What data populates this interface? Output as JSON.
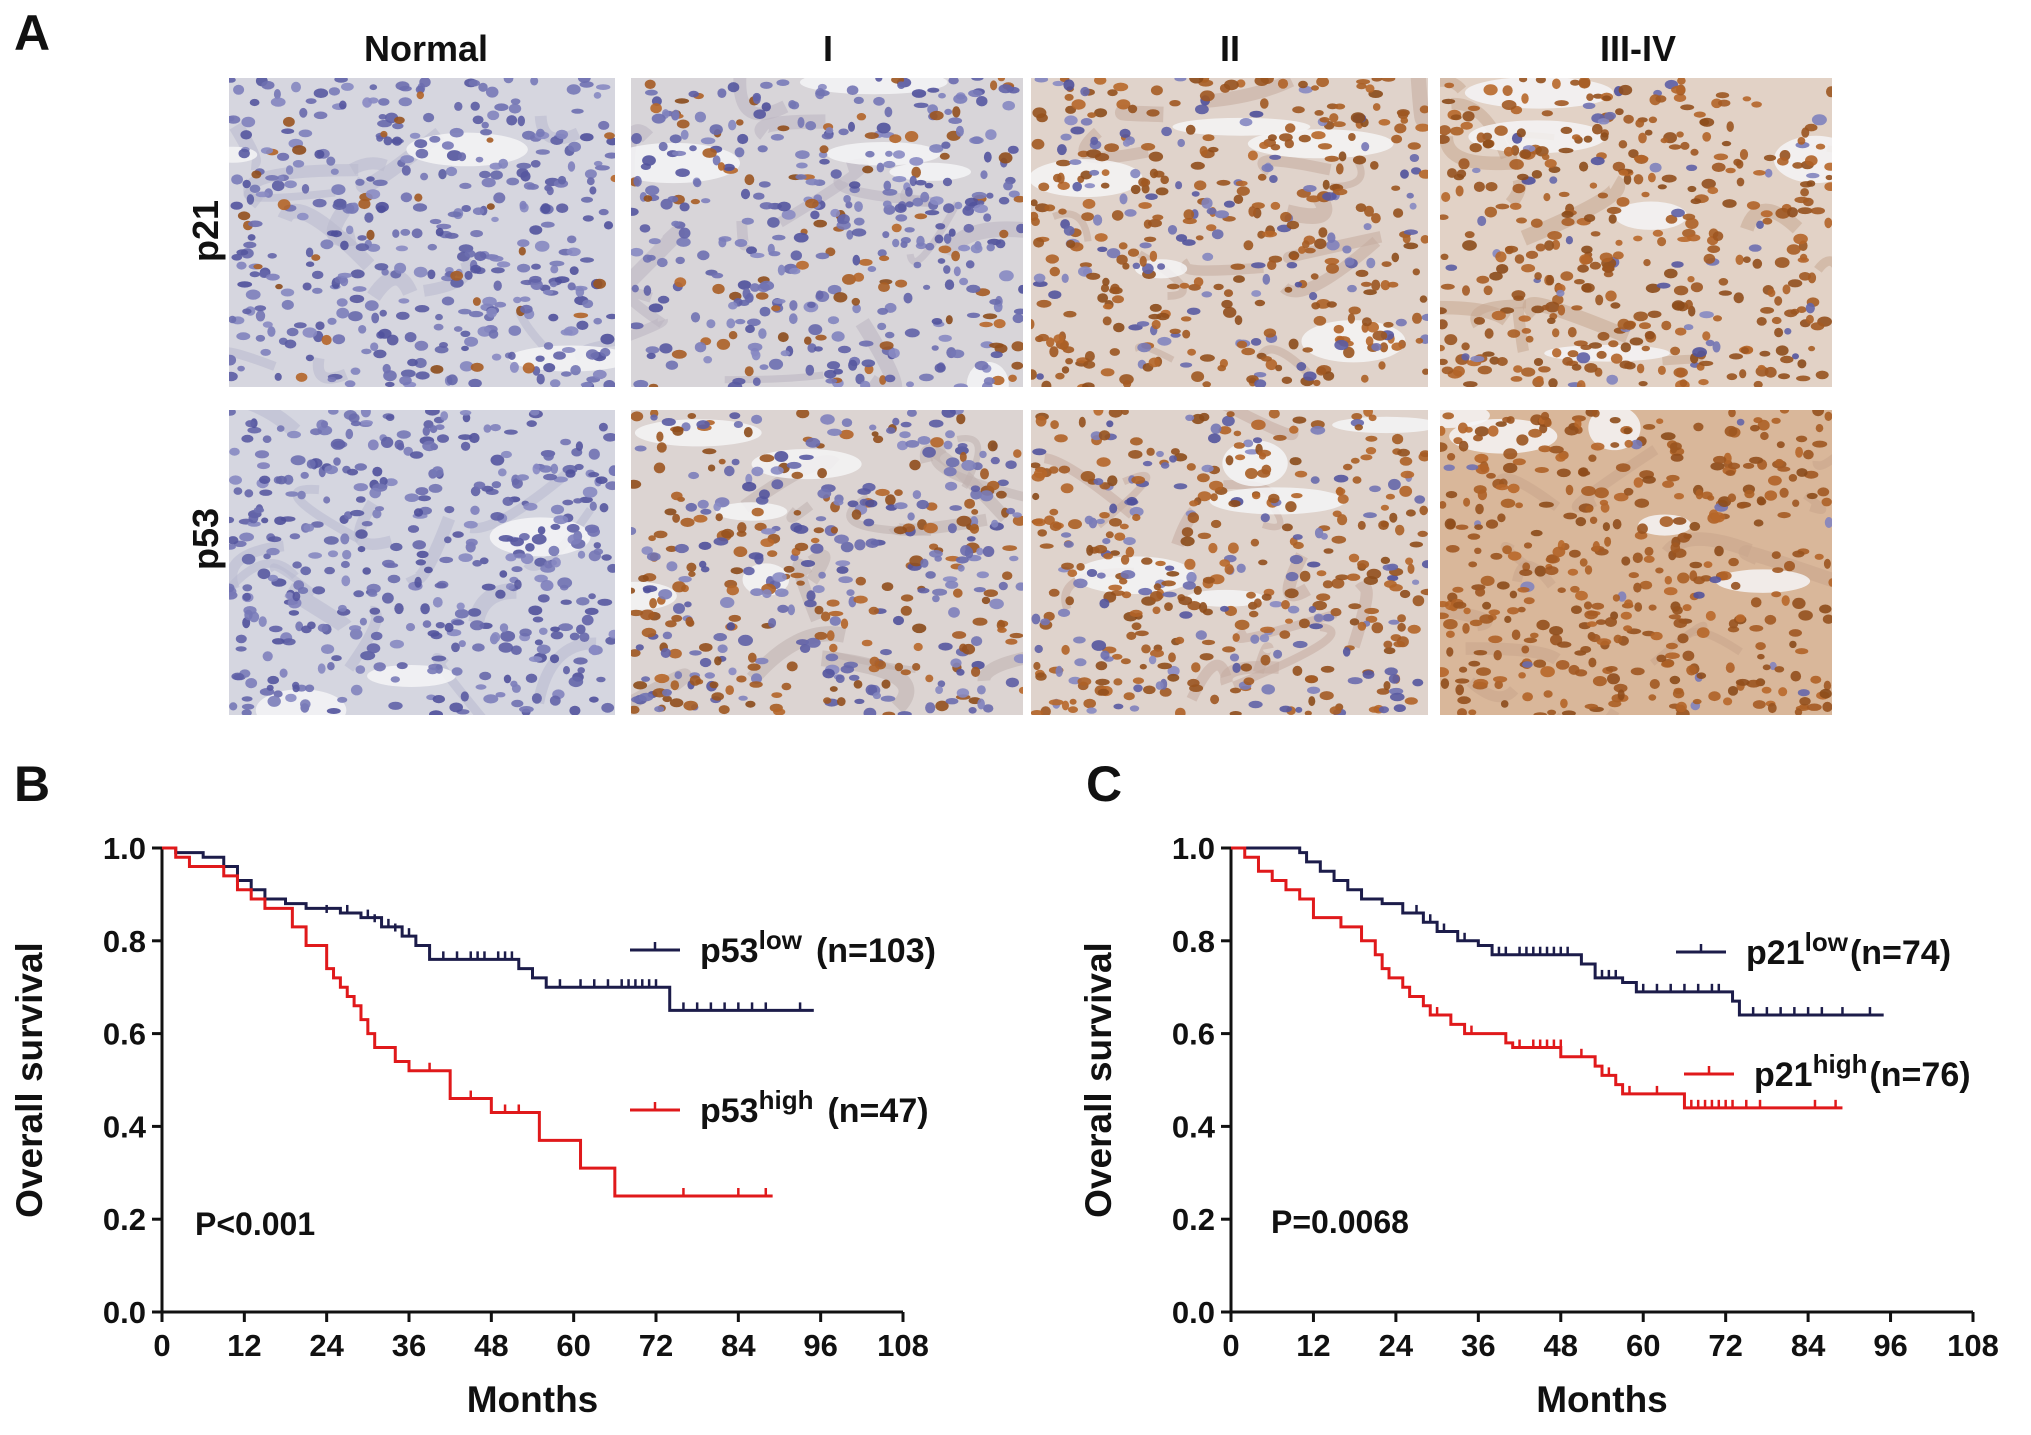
{
  "panels": {
    "a": "A",
    "b": "B",
    "c": "C"
  },
  "columns": [
    "Normal",
    "I",
    "II",
    "III-IV"
  ],
  "rows": [
    "p21",
    "p53"
  ],
  "tissue_grid": [
    [
      0.05,
      0.22,
      0.7,
      0.88
    ],
    [
      0.0,
      0.48,
      0.68,
      0.97
    ]
  ],
  "colors": {
    "low": "#1c1c4a",
    "high": "#e0191b",
    "axis": "#111111",
    "hematoxylin": "#5a5aa6",
    "dab": "#a2541a"
  },
  "chart_data": [
    {
      "type": "line",
      "subtype": "kaplan-meier",
      "xlabel": "Months",
      "ylabel": "Overall survival",
      "xlim": [
        0,
        108
      ],
      "ylim": [
        0,
        1.0
      ],
      "xticks": [
        0,
        12,
        24,
        36,
        48,
        60,
        72,
        84,
        96,
        108
      ],
      "yticks": [
        "0.0",
        "0.2",
        "0.4",
        "0.6",
        "0.8",
        "1.0"
      ],
      "annotation": "P<0.001",
      "series": [
        {
          "key": "low",
          "name": "p53",
          "superscript": "low",
          "n_label": "(n=103)",
          "steps": [
            [
              0,
              1.0
            ],
            [
              2,
              0.99
            ],
            [
              6,
              0.98
            ],
            [
              9,
              0.96
            ],
            [
              11,
              0.93
            ],
            [
              13,
              0.91
            ],
            [
              15,
              0.89
            ],
            [
              18,
              0.88
            ],
            [
              21,
              0.87
            ],
            [
              26,
              0.86
            ],
            [
              29,
              0.85
            ],
            [
              32,
              0.83
            ],
            [
              35,
              0.81
            ],
            [
              37,
              0.79
            ],
            [
              39,
              0.76
            ],
            [
              52,
              0.74
            ],
            [
              54,
              0.72
            ],
            [
              56,
              0.7
            ],
            [
              74,
              0.65
            ],
            [
              95,
              0.65
            ]
          ],
          "censors": [
            [
              24,
              0.86
            ],
            [
              27,
              0.86
            ],
            [
              30,
              0.85
            ],
            [
              31,
              0.84
            ],
            [
              33,
              0.83
            ],
            [
              34,
              0.82
            ],
            [
              36,
              0.81
            ],
            [
              41,
              0.76
            ],
            [
              43,
              0.76
            ],
            [
              45,
              0.76
            ],
            [
              46,
              0.76
            ],
            [
              47,
              0.76
            ],
            [
              49,
              0.76
            ],
            [
              50,
              0.76
            ],
            [
              51,
              0.76
            ],
            [
              54,
              0.72
            ],
            [
              58,
              0.7
            ],
            [
              61,
              0.7
            ],
            [
              63,
              0.7
            ],
            [
              65,
              0.7
            ],
            [
              67,
              0.7
            ],
            [
              68,
              0.7
            ],
            [
              69,
              0.7
            ],
            [
              70,
              0.7
            ],
            [
              71,
              0.7
            ],
            [
              72,
              0.7
            ],
            [
              76,
              0.65
            ],
            [
              78,
              0.65
            ],
            [
              80,
              0.65
            ],
            [
              82,
              0.65
            ],
            [
              84,
              0.65
            ],
            [
              86,
              0.65
            ],
            [
              88,
              0.65
            ],
            [
              93,
              0.65
            ]
          ]
        },
        {
          "key": "high",
          "name": "p53",
          "superscript": "high",
          "n_label": "(n=47)",
          "steps": [
            [
              0,
              1.0
            ],
            [
              2,
              0.98
            ],
            [
              4,
              0.96
            ],
            [
              9,
              0.94
            ],
            [
              11,
              0.91
            ],
            [
              13,
              0.89
            ],
            [
              15,
              0.87
            ],
            [
              19,
              0.83
            ],
            [
              21,
              0.79
            ],
            [
              24,
              0.74
            ],
            [
              25,
              0.72
            ],
            [
              26,
              0.7
            ],
            [
              27,
              0.68
            ],
            [
              28,
              0.66
            ],
            [
              29,
              0.63
            ],
            [
              30,
              0.6
            ],
            [
              31,
              0.57
            ],
            [
              34,
              0.54
            ],
            [
              36,
              0.52
            ],
            [
              42,
              0.46
            ],
            [
              48,
              0.43
            ],
            [
              55,
              0.37
            ],
            [
              61,
              0.31
            ],
            [
              66,
              0.25
            ],
            [
              89,
              0.25
            ]
          ],
          "censors": [
            [
              30,
              0.6
            ],
            [
              39,
              0.52
            ],
            [
              45,
              0.46
            ],
            [
              50,
              0.43
            ],
            [
              52,
              0.43
            ],
            [
              76,
              0.25
            ],
            [
              84,
              0.25
            ],
            [
              88,
              0.25
            ]
          ]
        }
      ]
    },
    {
      "type": "line",
      "subtype": "kaplan-meier",
      "xlabel": "Months",
      "ylabel": "Overall survival",
      "xlim": [
        0,
        108
      ],
      "ylim": [
        0,
        1.0
      ],
      "xticks": [
        0,
        12,
        24,
        36,
        48,
        60,
        72,
        84,
        96,
        108
      ],
      "yticks": [
        "0.0",
        "0.2",
        "0.4",
        "0.6",
        "0.8",
        "1.0"
      ],
      "annotation": "P=0.0068",
      "series": [
        {
          "key": "low",
          "name": "p21",
          "superscript": "low",
          "n_label": "(n=74)",
          "steps": [
            [
              0,
              1.0
            ],
            [
              10,
              0.99
            ],
            [
              11,
              0.97
            ],
            [
              13,
              0.95
            ],
            [
              15,
              0.93
            ],
            [
              17,
              0.91
            ],
            [
              19,
              0.89
            ],
            [
              22,
              0.88
            ],
            [
              25,
              0.86
            ],
            [
              28,
              0.84
            ],
            [
              30,
              0.82
            ],
            [
              33,
              0.8
            ],
            [
              36,
              0.79
            ],
            [
              38,
              0.77
            ],
            [
              51,
              0.75
            ],
            [
              53,
              0.72
            ],
            [
              57,
              0.71
            ],
            [
              59,
              0.69
            ],
            [
              73,
              0.67
            ],
            [
              74,
              0.64
            ],
            [
              95,
              0.64
            ]
          ],
          "censors": [
            [
              27,
              0.86
            ],
            [
              29,
              0.84
            ],
            [
              31,
              0.82
            ],
            [
              34,
              0.8
            ],
            [
              39,
              0.77
            ],
            [
              40,
              0.77
            ],
            [
              42,
              0.77
            ],
            [
              43,
              0.77
            ],
            [
              44,
              0.77
            ],
            [
              45,
              0.77
            ],
            [
              46,
              0.77
            ],
            [
              47,
              0.77
            ],
            [
              48,
              0.77
            ],
            [
              49,
              0.77
            ],
            [
              54,
              0.72
            ],
            [
              55,
              0.72
            ],
            [
              56,
              0.72
            ],
            [
              60,
              0.69
            ],
            [
              62,
              0.69
            ],
            [
              64,
              0.69
            ],
            [
              66,
              0.69
            ],
            [
              68,
              0.69
            ],
            [
              70,
              0.69
            ],
            [
              71,
              0.69
            ],
            [
              76,
              0.64
            ],
            [
              78,
              0.64
            ],
            [
              80,
              0.64
            ],
            [
              82,
              0.64
            ],
            [
              84,
              0.64
            ],
            [
              86,
              0.64
            ],
            [
              89,
              0.64
            ],
            [
              93,
              0.64
            ]
          ]
        },
        {
          "key": "high",
          "name": "p21",
          "superscript": "high",
          "n_label": "(n=76)",
          "steps": [
            [
              0,
              1.0
            ],
            [
              2,
              0.98
            ],
            [
              4,
              0.95
            ],
            [
              6,
              0.93
            ],
            [
              8,
              0.91
            ],
            [
              10,
              0.89
            ],
            [
              12,
              0.85
            ],
            [
              16,
              0.83
            ],
            [
              19,
              0.8
            ],
            [
              21,
              0.77
            ],
            [
              22,
              0.74
            ],
            [
              23,
              0.72
            ],
            [
              25,
              0.7
            ],
            [
              26,
              0.68
            ],
            [
              28,
              0.66
            ],
            [
              29,
              0.64
            ],
            [
              32,
              0.62
            ],
            [
              34,
              0.6
            ],
            [
              40,
              0.58
            ],
            [
              41,
              0.57
            ],
            [
              48,
              0.55
            ],
            [
              53,
              0.53
            ],
            [
              54,
              0.51
            ],
            [
              56,
              0.49
            ],
            [
              57,
              0.47
            ],
            [
              66,
              0.44
            ],
            [
              89,
              0.44
            ]
          ],
          "censors": [
            [
              30,
              0.64
            ],
            [
              35,
              0.6
            ],
            [
              42,
              0.57
            ],
            [
              44,
              0.57
            ],
            [
              45,
              0.57
            ],
            [
              46,
              0.57
            ],
            [
              47,
              0.57
            ],
            [
              48,
              0.57
            ],
            [
              51,
              0.55
            ],
            [
              55,
              0.51
            ],
            [
              58,
              0.47
            ],
            [
              62,
              0.47
            ],
            [
              67,
              0.44
            ],
            [
              68,
              0.44
            ],
            [
              69,
              0.44
            ],
            [
              70,
              0.44
            ],
            [
              71,
              0.44
            ],
            [
              72,
              0.44
            ],
            [
              73,
              0.44
            ],
            [
              75,
              0.44
            ],
            [
              77,
              0.44
            ],
            [
              85,
              0.44
            ],
            [
              88,
              0.44
            ]
          ]
        }
      ]
    }
  ]
}
